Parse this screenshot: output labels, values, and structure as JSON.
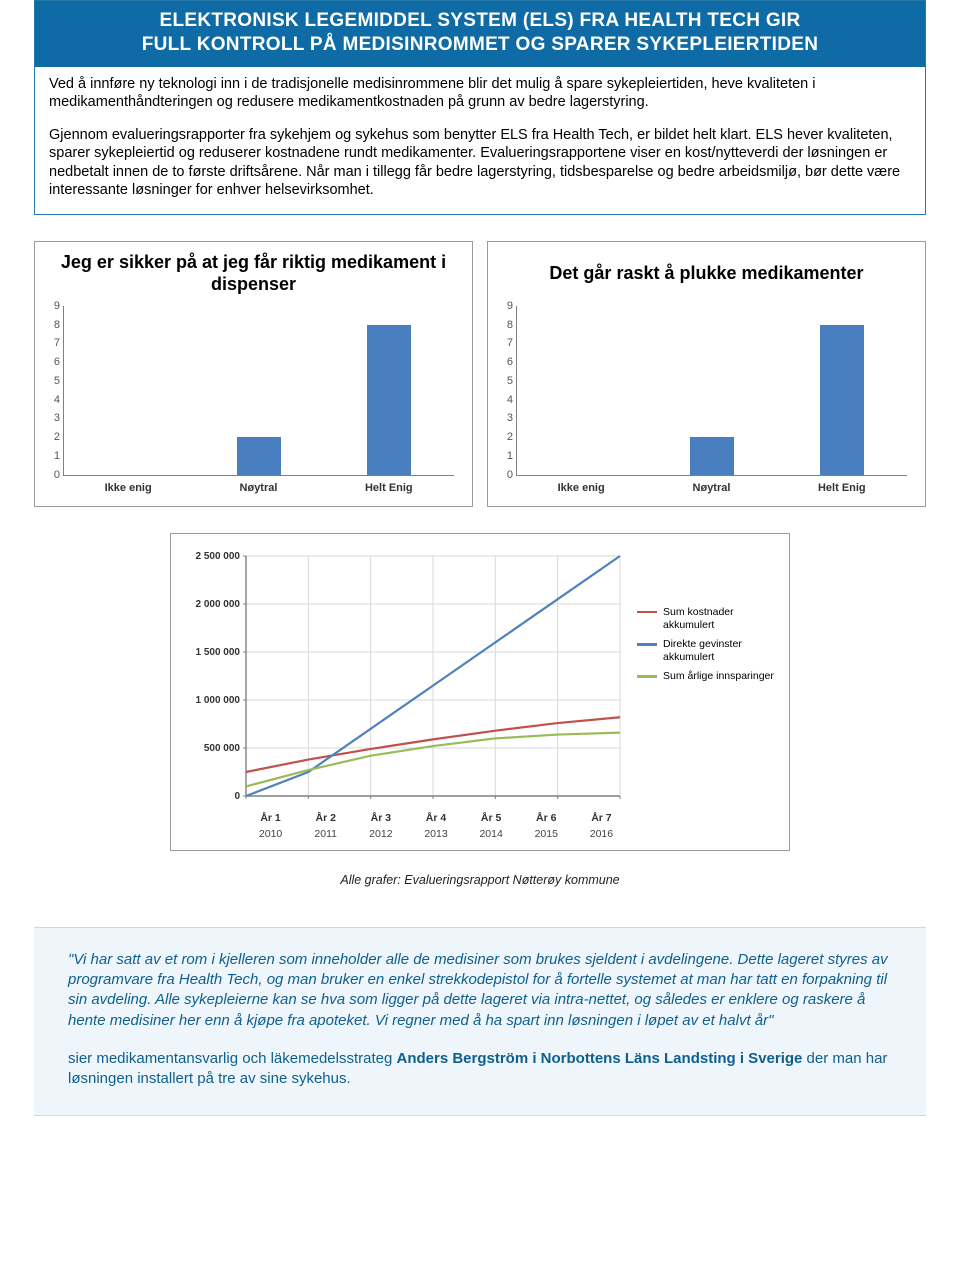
{
  "header": {
    "title_line1": "ELEKTRONISK LEGEMIDDEL SYSTEM (ELS) FRA HEALTH TECH GIR",
    "title_line2": "FULL KONTROLL PÅ MEDISINROMMET OG SPARER SYKEPLEIERTIDEN",
    "intro_p1": "Ved å innføre ny teknologi inn i de tradisjonelle medisinrommene blir det mulig å spare sykepleiertiden, heve kvaliteten i medikamenthåndteringen og redusere medikamentkostnaden på grunn av bedre lagerstyring.",
    "intro_p2": "Gjennom evalueringsrapporter fra sykehjem og sykehus som benytter ELS fra Health Tech, er bildet helt klart. ELS hever kvaliteten, sparer sykepleiertid og reduserer kostnadene rundt medikamenter. Evalueringsrapportene viser en kost/nytteverdi der løsningen er nedbetalt innen de to første driftsårene. Når man i tillegg får bedre lagerstyring, tidsbesparelse og bedre arbeidsmiljø, bør dette være interessante løsninger for enhver helsevirksomhet."
  },
  "barchart_left": {
    "title": "Jeg er sikker på at jeg får riktig medikament i dispenser",
    "type": "bar",
    "categories": [
      "Ikke enig",
      "Nøytral",
      "Helt Enig"
    ],
    "values": [
      0,
      2,
      8
    ],
    "ylim": [
      0,
      9
    ],
    "yticks": [
      9,
      8,
      7,
      6,
      5,
      4,
      3,
      2,
      1,
      0
    ],
    "bar_color": "#4a7fbf",
    "axis_color": "#808080",
    "label_fontsize": 11
  },
  "barchart_right": {
    "title": "Det går raskt å plukke medikamenter",
    "type": "bar",
    "categories": [
      "Ikke enig",
      "Nøytral",
      "Helt Enig"
    ],
    "values": [
      0,
      2,
      8
    ],
    "ylim": [
      0,
      9
    ],
    "yticks": [
      9,
      8,
      7,
      6,
      5,
      4,
      3,
      2,
      1,
      0
    ],
    "bar_color": "#4a7fbf",
    "axis_color": "#808080",
    "label_fontsize": 11
  },
  "linechart": {
    "type": "line",
    "x_labels_top": [
      "År 1",
      "År 2",
      "År 3",
      "År 4",
      "År 5",
      "År 6",
      "År 7"
    ],
    "x_labels_bottom": [
      "2010",
      "2011",
      "2012",
      "2013",
      "2014",
      "2015",
      "2016"
    ],
    "y_ticks": [
      0,
      500000,
      1000000,
      1500000,
      2000000,
      2500000
    ],
    "y_tick_labels": [
      "0",
      "500 000",
      "1 000 000",
      "1 500 000",
      "2 000 000",
      "2 500 000"
    ],
    "ylim": [
      0,
      2500000
    ],
    "series": [
      {
        "name": "Sum kostnader akkumulert",
        "color": "#c0504d",
        "values": [
          250000,
          380000,
          490000,
          590000,
          680000,
          760000,
          820000
        ]
      },
      {
        "name": "Direkte gevinster akkumulert",
        "color": "#4f81bd",
        "values": [
          0,
          250000,
          700000,
          1150000,
          1600000,
          2050000,
          2500000
        ]
      },
      {
        "name": "Sum årlige innsparinger",
        "color": "#9bbb59",
        "values": [
          100000,
          270000,
          420000,
          520000,
          600000,
          640000,
          660000
        ]
      }
    ],
    "axis_color": "#808080",
    "grid_color": "#d9d9d9",
    "line_width": 2.2,
    "legend_fontsize": 10.5
  },
  "caption": "Alle grafer: Evalueringsrapport Nøtterøy kommune",
  "quote": {
    "text": "\"Vi har satt av et rom i kjelleren som inneholder alle de medisiner som brukes sjeldent i avdelingene. Dette lageret styres av programvare fra Health Tech, og man bruker en enkel strekkodepistol for å fortelle systemet at man har tatt en forpakning til sin avdeling. Alle sykepleierne kan se hva som ligger på dette lageret via intra-nettet, og således er enklere og raskere å hente medisiner her enn å kjøpe fra apoteket. Vi regner med å ha spart inn løsningen i løpet av et halvt år\"",
    "attrib_prefix": "sier medikamentansvarlig och läkemedelsstrateg ",
    "attrib_bold": "Anders Bergström i Norbottens Läns Landsting i Sverige",
    "attrib_suffix": " der man har løsningen installert på tre av sine sykehus."
  }
}
